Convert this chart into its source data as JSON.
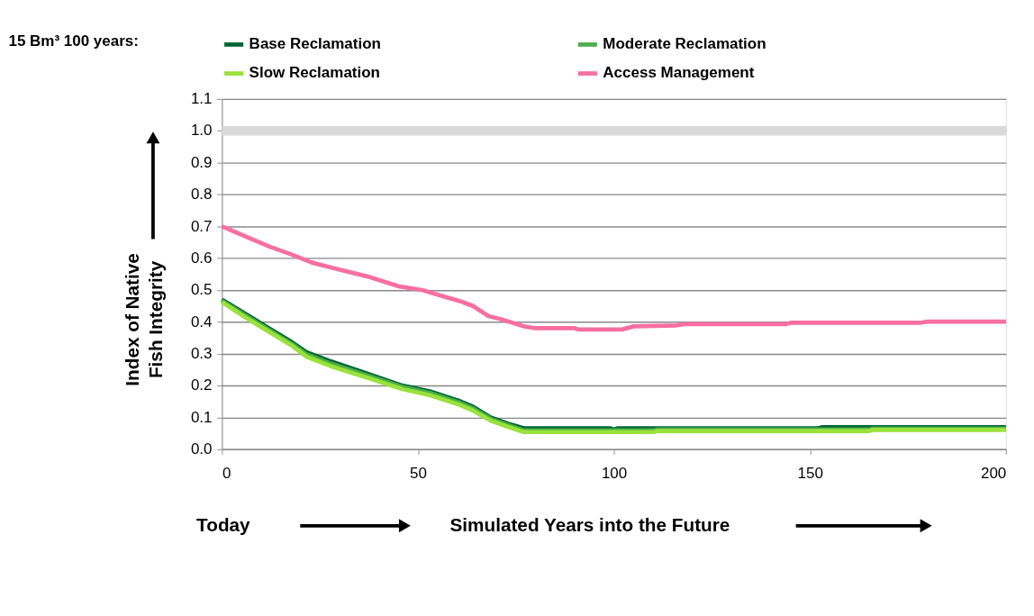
{
  "chart_data": {
    "type": "line",
    "title": "15 Bm³ 100 years:",
    "xlabel": "Simulated Years into the Future",
    "ylabel": "Index of Native Fish Integrity",
    "annotations": [
      "Today"
    ],
    "xlim": [
      0,
      200
    ],
    "xticks": [
      0,
      50,
      100,
      150,
      200
    ],
    "ylim": [
      0,
      1.1
    ],
    "yticks": [
      {
        "value": 0,
        "label": "0.0"
      },
      0.1,
      0.2,
      0.3,
      0.4,
      0.5,
      0.6,
      0.7,
      0.8,
      0.9,
      {
        "value": 1,
        "label": "1.0"
      },
      1.1
    ],
    "grid": "y",
    "legend": "top",
    "line_style": "solid",
    "bands": [
      {
        "axis": "y",
        "from": 0.985,
        "to": 1.015,
        "color": "#d9d9d9"
      }
    ],
    "series": [
      {
        "name": "Base Reclamation",
        "color": "#006633",
        "x": [
          0,
          6,
          12,
          18,
          21.5,
          28,
          37,
          46,
          53,
          60.5,
          64,
          68.5,
          73,
          77,
          99,
          100,
          101,
          152,
          153,
          200
        ],
        "values": [
          0.47,
          0.425,
          0.38,
          0.335,
          0.305,
          0.275,
          0.238,
          0.2,
          0.182,
          0.152,
          0.134,
          0.1,
          0.08,
          0.066,
          0.066,
          0.062,
          0.066,
          0.066,
          0.069,
          0.069
        ]
      },
      {
        "name": "Moderate Reclamation",
        "color": "#4cae4c",
        "x": [
          0,
          6,
          12,
          18,
          21.5,
          28,
          37,
          46,
          53,
          60.5,
          64,
          68.5,
          73,
          77,
          110,
          111,
          165,
          166,
          200
        ],
        "values": [
          0.466,
          0.42,
          0.375,
          0.33,
          0.299,
          0.268,
          0.232,
          0.196,
          0.177,
          0.147,
          0.129,
          0.096,
          0.076,
          0.059,
          0.059,
          0.062,
          0.062,
          0.065,
          0.065
        ]
      },
      {
        "name": "Slow Reclamation",
        "color": "#99e23a",
        "x": [
          0,
          6,
          12,
          18,
          21.5,
          28,
          37,
          46,
          53,
          60.5,
          64,
          68.5,
          73,
          77,
          110,
          111,
          165,
          166,
          200
        ],
        "values": [
          0.462,
          0.414,
          0.369,
          0.324,
          0.291,
          0.26,
          0.225,
          0.189,
          0.17,
          0.14,
          0.122,
          0.09,
          0.07,
          0.054,
          0.054,
          0.057,
          0.057,
          0.061,
          0.061
        ]
      },
      {
        "name": "Access Management",
        "color": "#f76fa0",
        "x": [
          0,
          12,
          17,
          23,
          28,
          37,
          45,
          51,
          56,
          61,
          64,
          68,
          71,
          77,
          80,
          90,
          91,
          102,
          105,
          116,
          118,
          144,
          145,
          178,
          180,
          200
        ],
        "values": [
          0.7,
          0.637,
          0.615,
          0.586,
          0.57,
          0.543,
          0.512,
          0.5,
          0.482,
          0.464,
          0.45,
          0.418,
          0.409,
          0.386,
          0.38,
          0.38,
          0.376,
          0.376,
          0.386,
          0.389,
          0.393,
          0.393,
          0.397,
          0.397,
          0.401,
          0.401
        ]
      }
    ]
  }
}
